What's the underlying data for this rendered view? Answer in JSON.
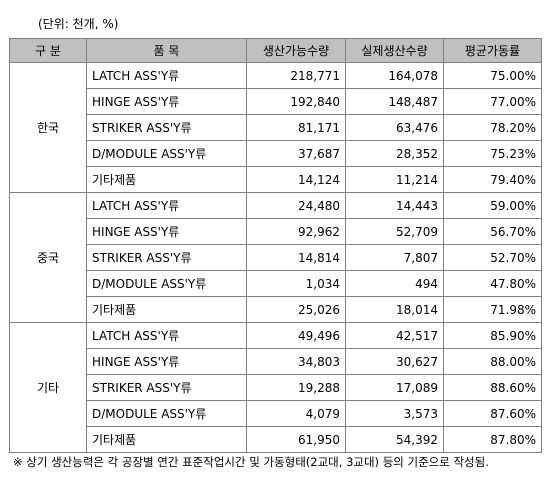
{
  "unit_label": "(단위: 천개, %)",
  "table": {
    "headers": [
      "구 분",
      "품 목",
      "생산가능수량",
      "실제생산수량",
      "평균가동률"
    ],
    "groups": [
      {
        "region": "한국",
        "rows": [
          {
            "product": "LATCH ASS'Y류",
            "capacity": "218,771",
            "actual": "164,078",
            "rate": "75.00%"
          },
          {
            "product": "HINGE ASS'Y류",
            "capacity": "192,840",
            "actual": "148,487",
            "rate": "77.00%"
          },
          {
            "product": "STRIKER ASS'Y류",
            "capacity": "81,171",
            "actual": "63,476",
            "rate": "78.20%"
          },
          {
            "product": "D/MODULE ASS'Y류",
            "capacity": "37,687",
            "actual": "28,352",
            "rate": "75.23%"
          },
          {
            "product": "기타제품",
            "capacity": "14,124",
            "actual": "11,214",
            "rate": "79.40%"
          }
        ]
      },
      {
        "region": "중국",
        "rows": [
          {
            "product": "LATCH ASS'Y류",
            "capacity": "24,480",
            "actual": "14,443",
            "rate": "59.00%"
          },
          {
            "product": "HINGE ASS'Y류",
            "capacity": "92,962",
            "actual": "52,709",
            "rate": "56.70%"
          },
          {
            "product": "STRIKER ASS'Y류",
            "capacity": "14,814",
            "actual": "7,807",
            "rate": "52.70%"
          },
          {
            "product": "D/MODULE ASS'Y류",
            "capacity": "1,034",
            "actual": "494",
            "rate": "47.80%"
          },
          {
            "product": "기타제품",
            "capacity": "25,026",
            "actual": "18,014",
            "rate": "71.98%"
          }
        ]
      },
      {
        "region": "기타",
        "rows": [
          {
            "product": "LATCH ASS'Y류",
            "capacity": "49,496",
            "actual": "42,517",
            "rate": "85.90%"
          },
          {
            "product": "HINGE ASS'Y류",
            "capacity": "34,803",
            "actual": "30,627",
            "rate": "88.00%"
          },
          {
            "product": "STRIKER ASS'Y류",
            "capacity": "19,288",
            "actual": "17,089",
            "rate": "88.60%"
          },
          {
            "product": "D/MODULE ASS'Y류",
            "capacity": "4,079",
            "actual": "3,573",
            "rate": "87.60%"
          },
          {
            "product": "기타제품",
            "capacity": "61,950",
            "actual": "54,392",
            "rate": "87.80%"
          }
        ]
      }
    ]
  },
  "note": "※ 상기 생산능력은 각 공장별 연간 표준작업시간 및 가동형태(2교대, 3교대) 등의 기준으로 작성됨."
}
